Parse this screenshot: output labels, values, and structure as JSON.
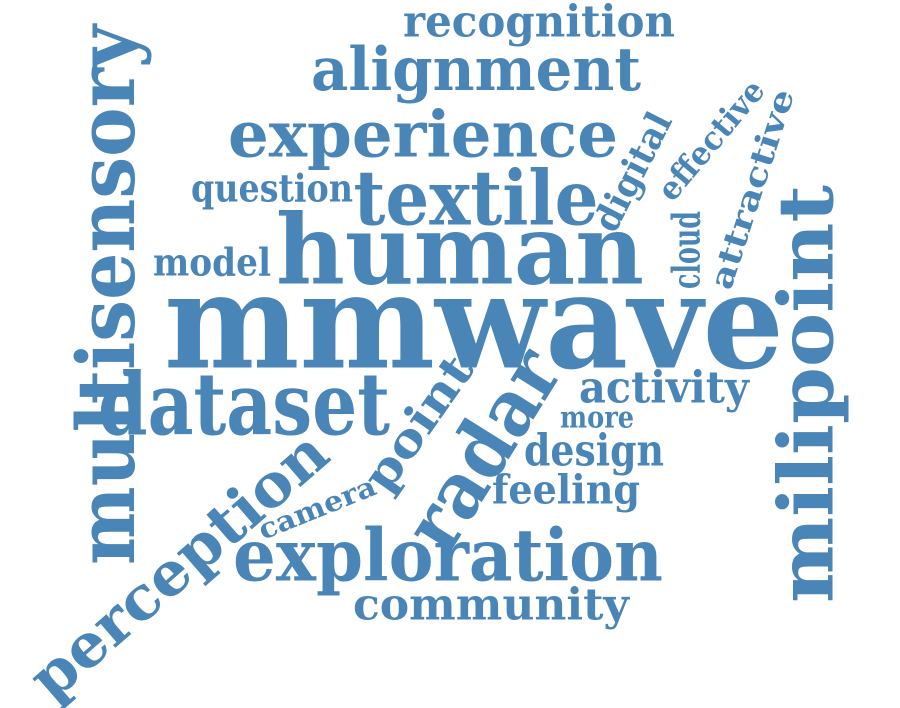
{
  "cloud": {
    "color": "#4a85b8",
    "background": "#ffffff",
    "words": {
      "recognition": "recognition",
      "alignment": "alignment",
      "experience": "experience",
      "question": "question",
      "textile": "textile",
      "digital": "digital",
      "effective": "effective",
      "attractive": "attractive",
      "model": "model",
      "human": "human",
      "cloud": "cloud",
      "mmwave": "mmwave",
      "multisensory": "multisensory",
      "milipoint": "milipoint",
      "dataset": "dataset",
      "point": "point",
      "radar": "radar",
      "activity": "activity",
      "more": "more",
      "design": "design",
      "perception": "perception",
      "camera": "camera",
      "feeling": "feeling",
      "exploration": "exploration",
      "community": "community"
    }
  }
}
